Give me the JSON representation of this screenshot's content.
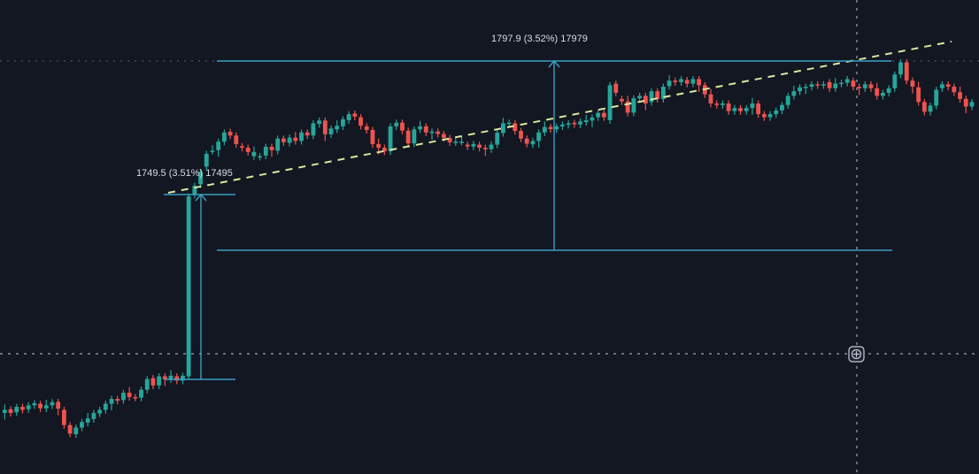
{
  "chart": {
    "colors": {
      "background": "#131722",
      "up_candle": "#26a69a",
      "down_candle": "#ef5350",
      "range_tool": "#3d9ec4",
      "trendline": "#d8e8a0",
      "crosshair": "#a3a6af",
      "label_text": "#d9dde6"
    }
  },
  "chart_data": {
    "type": "candlestick",
    "title": "",
    "xlabel": "",
    "ylabel": "",
    "ylim": [
      16795,
      18170
    ],
    "visible_candles": 164,
    "series_open_close": [
      [
        16920,
        16930
      ],
      [
        16932,
        16920
      ],
      [
        16922,
        16940
      ],
      [
        16940,
        16930
      ],
      [
        16932,
        16945
      ],
      [
        16945,
        16952
      ],
      [
        16950,
        16935
      ],
      [
        16935,
        16945
      ],
      [
        16945,
        16955
      ],
      [
        16956,
        16934
      ],
      [
        16930,
        16880
      ],
      [
        16880,
        16852
      ],
      [
        16850,
        16872
      ],
      [
        16872,
        16890
      ],
      [
        16888,
        16902
      ],
      [
        16900,
        16920
      ],
      [
        16918,
        16930
      ],
      [
        16930,
        16950
      ],
      [
        16950,
        16966
      ],
      [
        16966,
        16960
      ],
      [
        16962,
        16986
      ],
      [
        16986,
        16972
      ],
      [
        16972,
        16970
      ],
      [
        16970,
        16996
      ],
      [
        16996,
        17031
      ],
      [
        17034,
        17010
      ],
      [
        17010,
        17040
      ],
      [
        17040,
        17030
      ],
      [
        17030,
        17042
      ],
      [
        17040,
        17026
      ],
      [
        17026,
        17042
      ],
      [
        17040,
        17630
      ],
      [
        17636,
        17665
      ],
      [
        17670,
        17710
      ],
      [
        17728,
        17770
      ],
      [
        17780,
        17780
      ],
      [
        17782,
        17810
      ],
      [
        17810,
        17840
      ],
      [
        17842,
        17830
      ],
      [
        17830,
        17802
      ],
      [
        17795,
        17790
      ],
      [
        17790,
        17776
      ],
      [
        17762,
        17776
      ],
      [
        17760,
        17762
      ],
      [
        17764,
        17793
      ],
      [
        17793,
        17782
      ],
      [
        17780,
        17820
      ],
      [
        17820,
        17808
      ],
      [
        17806,
        17823
      ],
      [
        17823,
        17812
      ],
      [
        17812,
        17840
      ],
      [
        17840,
        17830
      ],
      [
        17830,
        17870
      ],
      [
        17868,
        17879
      ],
      [
        17879,
        17834
      ],
      [
        17834,
        17853
      ],
      [
        17850,
        17862
      ],
      [
        17860,
        17883
      ],
      [
        17880,
        17900
      ],
      [
        17902,
        17892
      ],
      [
        17890,
        17862
      ],
      [
        17860,
        17848
      ],
      [
        17848,
        17802
      ],
      [
        17802,
        17790
      ],
      [
        17790,
        17778
      ],
      [
        17778,
        17860
      ],
      [
        17860,
        17872
      ],
      [
        17872,
        17846
      ],
      [
        17846,
        17804
      ],
      [
        17804,
        17850
      ],
      [
        17850,
        17860
      ],
      [
        17860,
        17840
      ],
      [
        17838,
        17843
      ],
      [
        17843,
        17835
      ],
      [
        17835,
        17822
      ],
      [
        17822,
        17808
      ],
      [
        17808,
        17810
      ],
      [
        17810,
        17810
      ],
      [
        17800,
        17794
      ],
      [
        17794,
        17802
      ],
      [
        17800,
        17790
      ],
      [
        17790,
        17785
      ],
      [
        17785,
        17800
      ],
      [
        17800,
        17839
      ],
      [
        17838,
        17870
      ],
      [
        17870,
        17872
      ],
      [
        17870,
        17845
      ],
      [
        17845,
        17820
      ],
      [
        17820,
        17803
      ],
      [
        17801,
        17812
      ],
      [
        17812,
        17840
      ],
      [
        17840,
        17858
      ],
      [
        17858,
        17851
      ],
      [
        17850,
        17860
      ],
      [
        17860,
        17866
      ],
      [
        17865,
        17870
      ],
      [
        17872,
        17867
      ],
      [
        17866,
        17876
      ],
      [
        17874,
        17880
      ],
      [
        17879,
        17889
      ],
      [
        17890,
        17904
      ],
      [
        17904,
        17890
      ],
      [
        17880,
        17995
      ],
      [
        18000,
        17970
      ],
      [
        17950,
        17942
      ],
      [
        17942,
        17905
      ],
      [
        17905,
        17952
      ],
      [
        17952,
        17960
      ],
      [
        17960,
        17935
      ],
      [
        17940,
        17975
      ],
      [
        17975,
        17950
      ],
      [
        17950,
        17990
      ],
      [
        17992,
        18010
      ],
      [
        18010,
        18005
      ],
      [
        18005,
        18015
      ],
      [
        18012,
        18000
      ],
      [
        18000,
        18015
      ],
      [
        18015,
        17995
      ],
      [
        17995,
        17965
      ],
      [
        17965,
        17935
      ],
      [
        17935,
        17930
      ],
      [
        17930,
        17935
      ],
      [
        17935,
        17910
      ],
      [
        17910,
        17920
      ],
      [
        17920,
        17910
      ],
      [
        17910,
        17920
      ],
      [
        17920,
        17935
      ],
      [
        17935,
        17900
      ],
      [
        17900,
        17890
      ],
      [
        17890,
        17900
      ],
      [
        17900,
        17912
      ],
      [
        17912,
        17930
      ],
      [
        17930,
        17960
      ],
      [
        17960,
        17975
      ],
      [
        17975,
        17988
      ],
      [
        17988,
        17990
      ],
      [
        17990,
        17998
      ],
      [
        17998,
        17995
      ],
      [
        17995,
        17998
      ],
      [
        18005,
        17985
      ],
      [
        17985,
        18000
      ],
      [
        18000,
        18003
      ],
      [
        18003,
        18015
      ],
      [
        18010,
        17990
      ],
      [
        17990,
        17985
      ],
      [
        17985,
        17998
      ],
      [
        17998,
        17985
      ],
      [
        17985,
        17960
      ],
      [
        17960,
        17970
      ],
      [
        17970,
        17985
      ],
      [
        17985,
        18030
      ],
      [
        18030,
        18070
      ],
      [
        18070,
        18010
      ],
      [
        18010,
        17990
      ],
      [
        17988,
        17940
      ],
      [
        17940,
        17908
      ],
      [
        17908,
        17928
      ],
      [
        17928,
        17980
      ],
      [
        17985,
        17998
      ],
      [
        17998,
        17990
      ],
      [
        17990,
        17972
      ],
      [
        17972,
        17950
      ],
      [
        17950,
        17925
      ],
      [
        17925,
        17940
      ]
    ],
    "annotations": [
      {
        "text": "1749.5 (3.51%) 17495"
      },
      {
        "text": "1797.9 (3.52%) 17979"
      }
    ],
    "grid": false,
    "legend": "none"
  }
}
